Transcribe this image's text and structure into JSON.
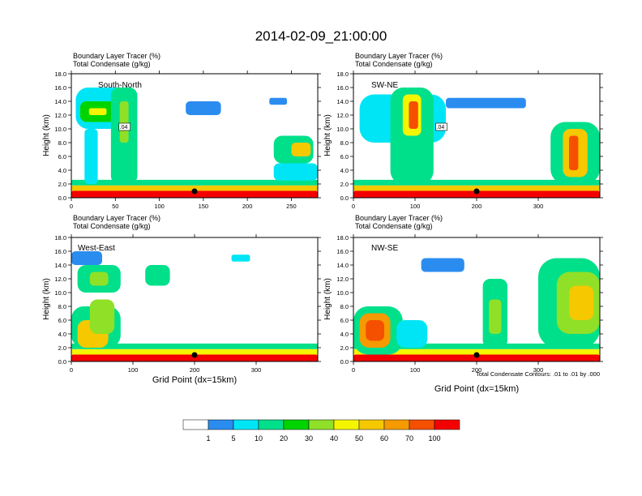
{
  "title": "2014-02-09_21:00:00",
  "colors": {
    "levels": [
      "#ffffff",
      "#2b8cf0",
      "#00e5f5",
      "#00e08a",
      "#00d400",
      "#90e028",
      "#f5f500",
      "#f5c800",
      "#f59a00",
      "#f55000",
      "#f50000"
    ],
    "contour": "#000000",
    "marker": "#000000"
  },
  "chart_data": [
    {
      "type": "heatmap",
      "panel": "top-left",
      "label": "South-North",
      "title_line1": "Boundary Layer Tracer   (%)",
      "title_line2": "Total Condensate   (g/kg)",
      "ylabel": "Height (km)",
      "xlabel": "",
      "xlim": [
        0,
        280
      ],
      "ylim": [
        0,
        18
      ],
      "xticks": [
        0,
        50,
        100,
        150,
        200,
        250
      ],
      "xtick_labels": [
        "0",
        "50",
        "100",
        "150",
        "200",
        "250"
      ],
      "yticks": [
        0,
        2,
        4,
        6,
        8,
        10,
        12,
        14,
        16,
        18
      ],
      "ytick_labels": [
        "0.0",
        "2.0",
        "4.0",
        "6.0",
        "8.0",
        "10.0",
        "12.0",
        "14.0",
        "16.0",
        "18.0"
      ],
      "marker_x": 140,
      "contour_labels": [
        {
          "text": ".04",
          "x": 55,
          "y": 10
        }
      ],
      "features": [
        {
          "x": [
            0,
            280
          ],
          "y": [
            0,
            1.0
          ],
          "level": 10
        },
        {
          "x": [
            0,
            280
          ],
          "y": [
            1.0,
            1.8
          ],
          "level": 7
        },
        {
          "x": [
            0,
            280
          ],
          "y": [
            1.8,
            2.6
          ],
          "level": 3
        },
        {
          "x": [
            5,
            70
          ],
          "y": [
            10,
            16
          ],
          "level": 2
        },
        {
          "x": [
            10,
            50
          ],
          "y": [
            11,
            14
          ],
          "level": 4
        },
        {
          "x": [
            20,
            40
          ],
          "y": [
            12,
            13
          ],
          "level": 6
        },
        {
          "x": [
            45,
            75
          ],
          "y": [
            2,
            16
          ],
          "level": 3
        },
        {
          "x": [
            55,
            65
          ],
          "y": [
            8,
            14
          ],
          "level": 5
        },
        {
          "x": [
            15,
            30
          ],
          "y": [
            2,
            10
          ],
          "level": 2
        },
        {
          "x": [
            130,
            170
          ],
          "y": [
            12,
            14
          ],
          "level": 1
        },
        {
          "x": [
            225,
            245
          ],
          "y": [
            13.5,
            14.5
          ],
          "level": 1
        },
        {
          "x": [
            230,
            275
          ],
          "y": [
            5,
            9
          ],
          "level": 3
        },
        {
          "x": [
            250,
            272
          ],
          "y": [
            6,
            8
          ],
          "level": 7
        },
        {
          "x": [
            230,
            280
          ],
          "y": [
            2.5,
            5
          ],
          "level": 2
        }
      ]
    },
    {
      "type": "heatmap",
      "panel": "top-right",
      "label": "SW-NE",
      "title_line1": "Boundary Layer Tracer   (%)",
      "title_line2": "Total Condensate   (g/kg)",
      "ylabel": "Height (km)",
      "xlabel": "",
      "xlim": [
        0,
        400
      ],
      "ylim": [
        0,
        18
      ],
      "xticks": [
        0,
        100,
        200,
        300
      ],
      "xtick_labels": [
        "0",
        "100",
        "200",
        "300"
      ],
      "yticks": [
        0,
        2,
        4,
        6,
        8,
        10,
        12,
        14,
        16,
        18
      ],
      "ytick_labels": [
        "0.0",
        "2.0",
        "4.0",
        "6.0",
        "8.0",
        "10.0",
        "12.0",
        "14.0",
        "16.0",
        "18.0"
      ],
      "marker_x": 200,
      "contour_labels": [
        {
          "text": ".04",
          "x": 135,
          "y": 10
        }
      ],
      "features": [
        {
          "x": [
            0,
            400
          ],
          "y": [
            0,
            1.0
          ],
          "level": 10
        },
        {
          "x": [
            0,
            400
          ],
          "y": [
            1.0,
            1.8
          ],
          "level": 7
        },
        {
          "x": [
            0,
            400
          ],
          "y": [
            1.8,
            2.6
          ],
          "level": 3
        },
        {
          "x": [
            10,
            150
          ],
          "y": [
            8,
            15
          ],
          "level": 2
        },
        {
          "x": [
            60,
            130
          ],
          "y": [
            2,
            16
          ],
          "level": 3
        },
        {
          "x": [
            80,
            110
          ],
          "y": [
            9,
            15
          ],
          "level": 6
        },
        {
          "x": [
            90,
            105
          ],
          "y": [
            10,
            14
          ],
          "level": 9
        },
        {
          "x": [
            150,
            280
          ],
          "y": [
            13,
            14.5
          ],
          "level": 1
        },
        {
          "x": [
            320,
            400
          ],
          "y": [
            2,
            11
          ],
          "level": 3
        },
        {
          "x": [
            340,
            380
          ],
          "y": [
            3,
            10
          ],
          "level": 7
        },
        {
          "x": [
            350,
            365
          ],
          "y": [
            4,
            9
          ],
          "level": 9
        }
      ]
    },
    {
      "type": "heatmap",
      "panel": "bottom-left",
      "label": "West-East",
      "title_line1": "Boundary Layer Tracer   (%)",
      "title_line2": "Total Condensate   (g/kg)",
      "ylabel": "Height (km)",
      "xlabel": "Grid Point (dx=15km)",
      "xlim": [
        0,
        400
      ],
      "ylim": [
        0,
        18
      ],
      "xticks": [
        0,
        100,
        200,
        300
      ],
      "xtick_labels": [
        "0",
        "100",
        "200",
        "300"
      ],
      "yticks": [
        0,
        2,
        4,
        6,
        8,
        10,
        12,
        14,
        16,
        18
      ],
      "ytick_labels": [
        "0.0",
        "2.0",
        "4.0",
        "6.0",
        "8.0",
        "10.0",
        "12.0",
        "14.0",
        "16.0",
        "18.0"
      ],
      "marker_x": 200,
      "contour_labels": [],
      "features": [
        {
          "x": [
            0,
            400
          ],
          "y": [
            0,
            1.0
          ],
          "level": 10
        },
        {
          "x": [
            0,
            400
          ],
          "y": [
            1.0,
            1.8
          ],
          "level": 6
        },
        {
          "x": [
            0,
            400
          ],
          "y": [
            1.8,
            2.6
          ],
          "level": 3
        },
        {
          "x": [
            0,
            80
          ],
          "y": [
            2,
            8
          ],
          "level": 3
        },
        {
          "x": [
            10,
            60
          ],
          "y": [
            2,
            6
          ],
          "level": 7
        },
        {
          "x": [
            30,
            70
          ],
          "y": [
            4,
            9
          ],
          "level": 5
        },
        {
          "x": [
            10,
            80
          ],
          "y": [
            10,
            14
          ],
          "level": 3
        },
        {
          "x": [
            30,
            60
          ],
          "y": [
            11,
            13
          ],
          "level": 5
        },
        {
          "x": [
            0,
            50
          ],
          "y": [
            14,
            16
          ],
          "level": 1
        },
        {
          "x": [
            120,
            160
          ],
          "y": [
            11,
            14
          ],
          "level": 3
        },
        {
          "x": [
            260,
            290
          ],
          "y": [
            14.5,
            15.5
          ],
          "level": 2
        }
      ]
    },
    {
      "type": "heatmap",
      "panel": "bottom-right",
      "label": "NW-SE",
      "title_line1": "Boundary Layer Tracer   (%)",
      "title_line2": "Total Condensate   (g/kg)",
      "ylabel": "Height (km)",
      "xlabel": "Grid Point (dx=15km)",
      "xlim": [
        0,
        400
      ],
      "ylim": [
        0,
        18
      ],
      "xticks": [
        0,
        100,
        200,
        300
      ],
      "xtick_labels": [
        "0",
        "100",
        "200",
        "300"
      ],
      "yticks": [
        0,
        2,
        4,
        6,
        8,
        10,
        12,
        14,
        16,
        18
      ],
      "ytick_labels": [
        "0.0",
        "2.0",
        "4.0",
        "6.0",
        "8.0",
        "10.0",
        "12.0",
        "14.0",
        "16.0",
        "18.0"
      ],
      "marker_x": 200,
      "contour_labels": [],
      "features": [
        {
          "x": [
            0,
            400
          ],
          "y": [
            0,
            1.0
          ],
          "level": 10
        },
        {
          "x": [
            0,
            400
          ],
          "y": [
            1.0,
            1.8
          ],
          "level": 6
        },
        {
          "x": [
            0,
            400
          ],
          "y": [
            1.8,
            2.6
          ],
          "level": 3
        },
        {
          "x": [
            0,
            80
          ],
          "y": [
            1,
            8
          ],
          "level": 3
        },
        {
          "x": [
            10,
            60
          ],
          "y": [
            2,
            7
          ],
          "level": 8
        },
        {
          "x": [
            20,
            50
          ],
          "y": [
            3,
            6
          ],
          "level": 9
        },
        {
          "x": [
            70,
            120
          ],
          "y": [
            2,
            6
          ],
          "level": 2
        },
        {
          "x": [
            210,
            250
          ],
          "y": [
            2,
            12
          ],
          "level": 3
        },
        {
          "x": [
            220,
            240
          ],
          "y": [
            4,
            9
          ],
          "level": 5
        },
        {
          "x": [
            300,
            400
          ],
          "y": [
            2,
            15
          ],
          "level": 3
        },
        {
          "x": [
            330,
            400
          ],
          "y": [
            4,
            13
          ],
          "level": 5
        },
        {
          "x": [
            350,
            390
          ],
          "y": [
            6,
            11
          ],
          "level": 7
        },
        {
          "x": [
            110,
            180
          ],
          "y": [
            13,
            15
          ],
          "level": 1
        }
      ],
      "footnote": "Total Condensate Contours: .01 to .01 by .000"
    }
  ],
  "colorbar": {
    "labels": [
      "1",
      "5",
      "10",
      "20",
      "30",
      "40",
      "50",
      "60",
      "70",
      "100"
    ]
  }
}
